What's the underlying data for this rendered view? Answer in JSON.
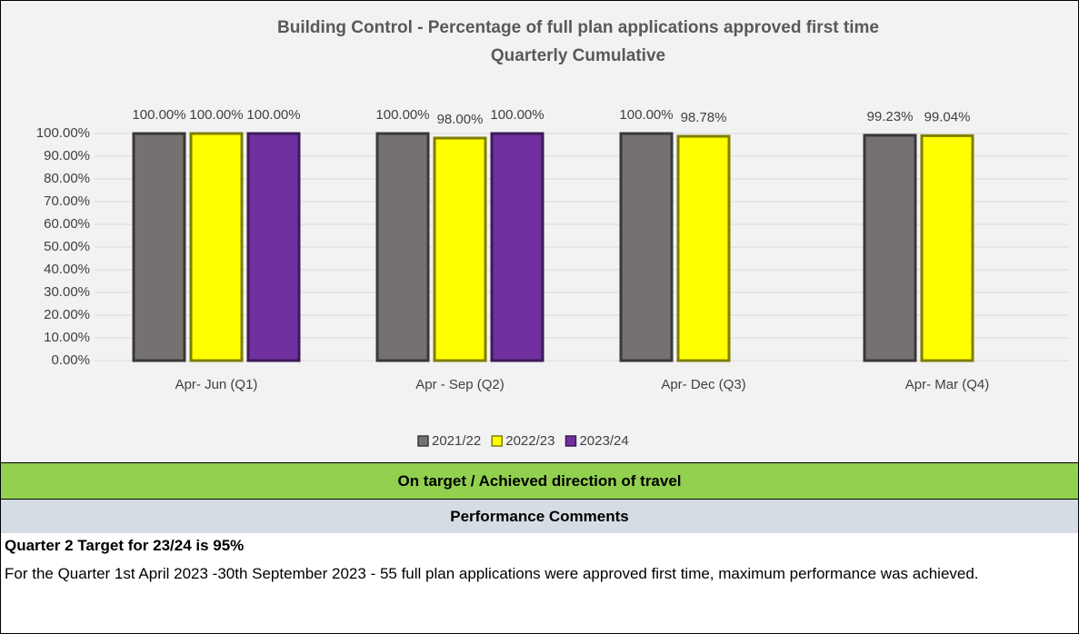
{
  "chart_data": {
    "type": "bar",
    "title": "Building Control - Percentage of full plan applications approved first time",
    "subtitle": "Quarterly Cumulative",
    "categories": [
      "Apr- Jun  (Q1)",
      "Apr - Sep  (Q2)",
      "Apr- Dec  (Q3)",
      "Apr- Mar  (Q4)"
    ],
    "series": [
      {
        "name": "2021/22",
        "color": "#767171",
        "values": [
          100,
          100,
          100,
          99.23
        ],
        "value_labels": [
          "100.00%",
          "100.00%",
          "100.00%",
          "99.23%"
        ]
      },
      {
        "name": "2022/23",
        "color": "#ffff00",
        "values": [
          100,
          98,
          98.78,
          99.04
        ],
        "value_labels": [
          "100.00%",
          "98.00%",
          "98.78%",
          "99.04%"
        ]
      },
      {
        "name": "2023/24",
        "color": "#7030a0",
        "values": [
          100,
          100,
          null,
          null
        ],
        "value_labels": [
          "100.00%",
          "100.00%",
          null,
          null
        ]
      }
    ],
    "ylim": [
      0,
      100
    ],
    "yticks": [
      {
        "value": 0,
        "label": "0.00%"
      },
      {
        "value": 10,
        "label": "10.00%"
      },
      {
        "value": 20,
        "label": "20.00%"
      },
      {
        "value": 30,
        "label": "30.00%"
      },
      {
        "value": 40,
        "label": "40.00%"
      },
      {
        "value": 50,
        "label": "50.00%"
      },
      {
        "value": 60,
        "label": "60.00%"
      },
      {
        "value": 70,
        "label": "70.00%"
      },
      {
        "value": 80,
        "label": "80.00%"
      },
      {
        "value": 90,
        "label": "90.00%"
      },
      {
        "value": 100,
        "label": "100.00%"
      }
    ],
    "grid": true,
    "legend": "bottom"
  },
  "status": "On target / Achieved direction of travel",
  "comments": {
    "heading": "Performance Comments",
    "target": "Quarter 2 Target for 23/24 is 95%",
    "text": "For the Quarter 1st April 2023 -30th September 2023 - 55 full plan applications were approved first time, maximum performance was achieved."
  }
}
